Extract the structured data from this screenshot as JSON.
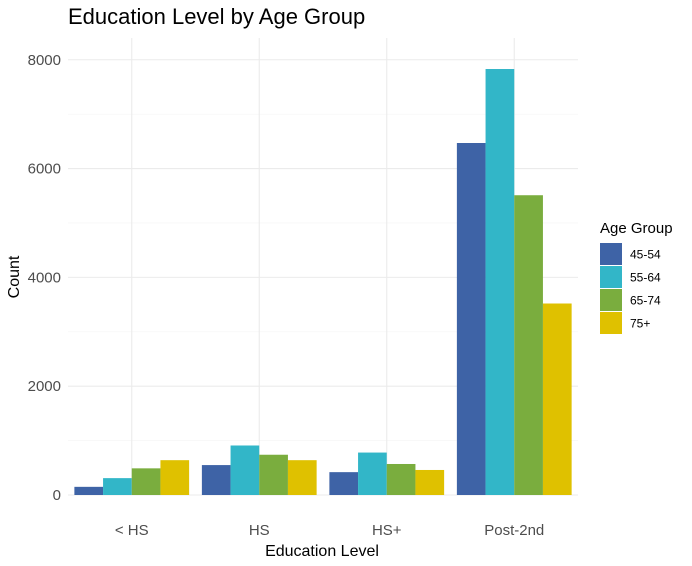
{
  "chart_data": {
    "type": "bar",
    "title": "Education Level by Age Group",
    "xlabel": "Education Level",
    "ylabel": "Count",
    "categories": [
      "< HS",
      "HS",
      "HS+",
      "Post-2nd"
    ],
    "series": [
      {
        "name": "45-54",
        "color": "#3e63a6",
        "values": [
          150,
          550,
          420,
          6470
        ]
      },
      {
        "name": "55-64",
        "color": "#32b6c8",
        "values": [
          310,
          910,
          780,
          7830
        ]
      },
      {
        "name": "65-74",
        "color": "#7aad3e",
        "values": [
          490,
          740,
          570,
          5510
        ]
      },
      {
        "name": "75+",
        "color": "#dfc100",
        "values": [
          640,
          640,
          460,
          3520
        ]
      }
    ],
    "ylim": [
      0,
      8400
    ],
    "yticks": [
      0,
      2000,
      4000,
      6000,
      8000
    ],
    "ytick_labels": [
      "0",
      "2000",
      "4000",
      "6000",
      "8000"
    ],
    "grid": true,
    "legend": {
      "title": "Age Group",
      "position": "right"
    }
  }
}
